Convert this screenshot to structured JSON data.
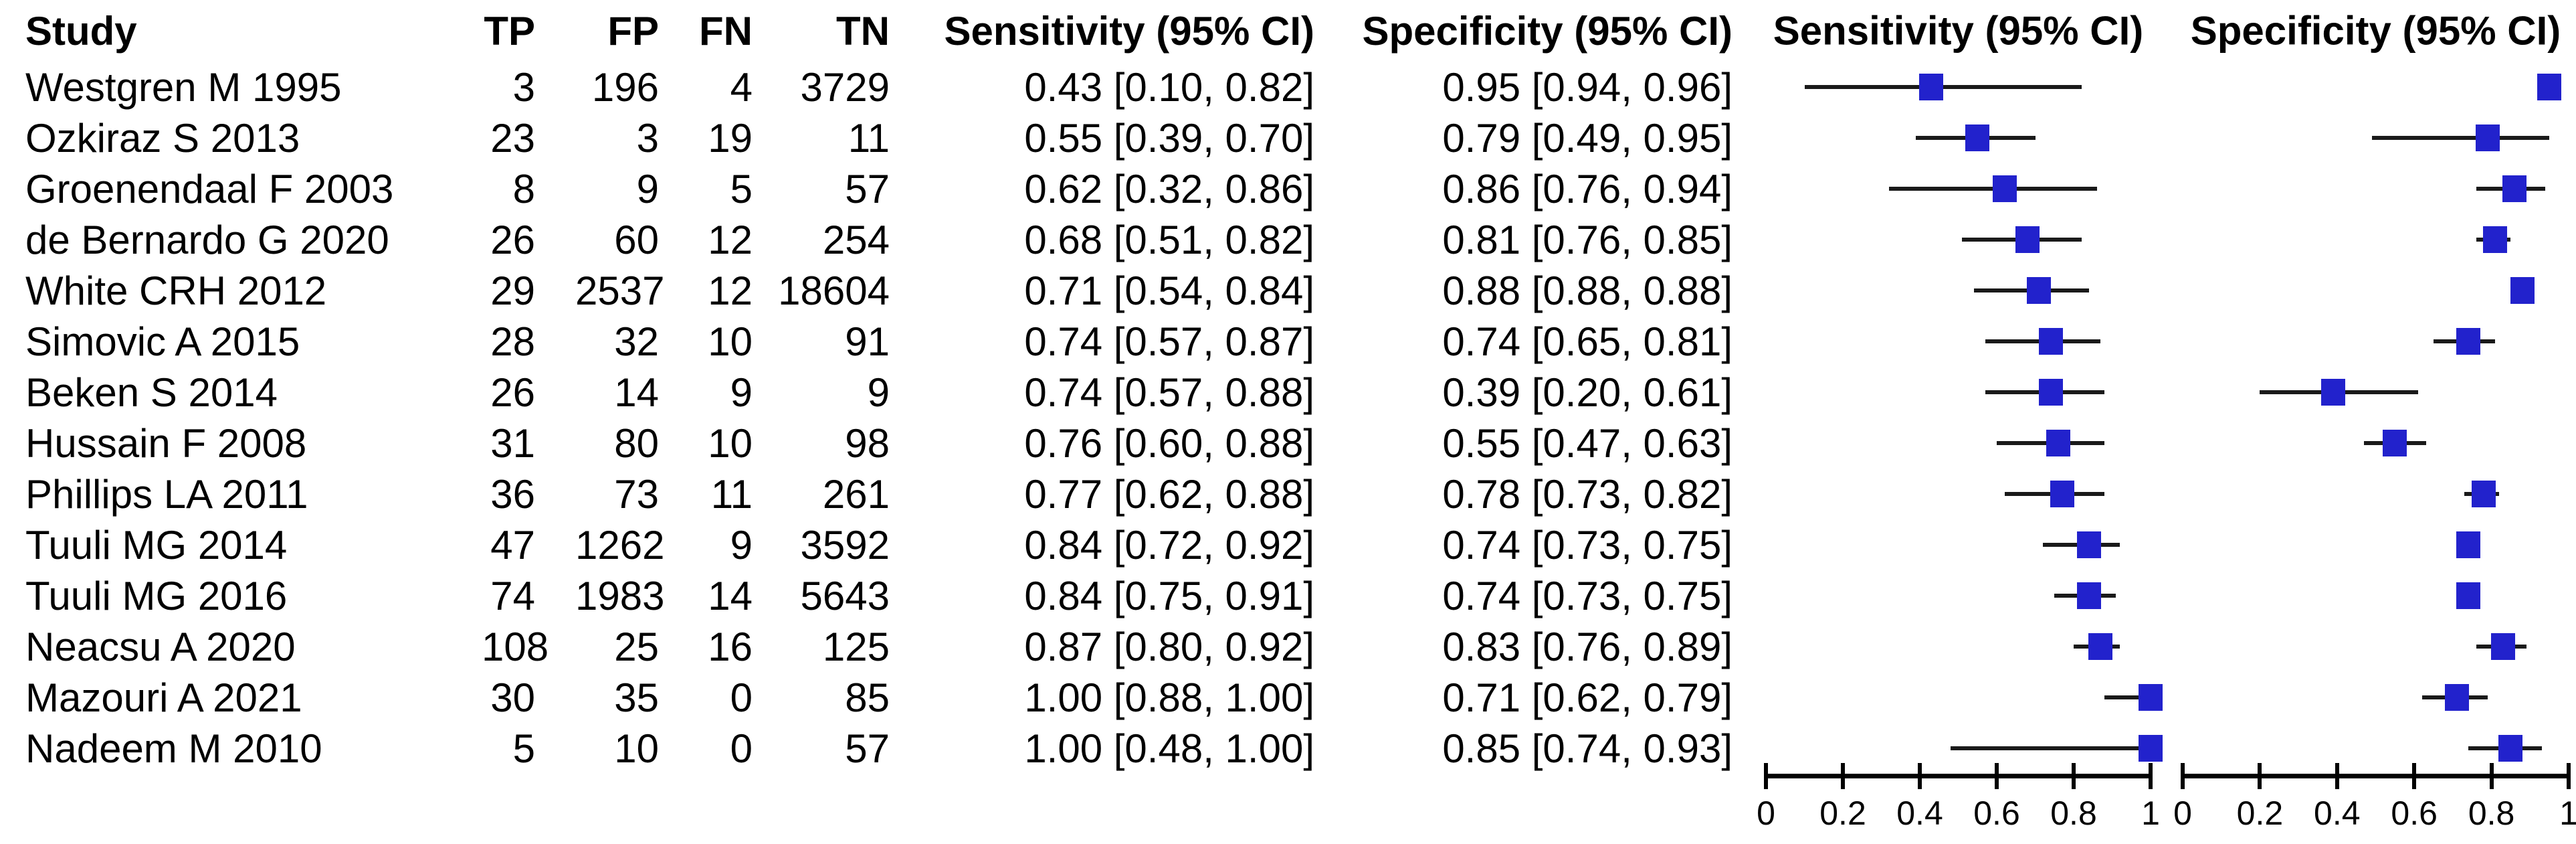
{
  "table": {
    "headers": {
      "study": "Study",
      "tp": "TP",
      "fp": "FP",
      "fn": "FN",
      "tn": "TN",
      "sensitivity": "Sensitivity (95% CI)",
      "specificity": "Specificity (95% CI)"
    }
  },
  "plot_headers": {
    "sensitivity": "Sensitivity (95% CI)",
    "specificity": "Specificity (95% CI)"
  },
  "colors": {
    "marker": "#2222CC",
    "ci_line": "#1a1a1a",
    "axis": "#000000",
    "text": "#000000",
    "background": "#ffffff"
  },
  "chart_data": {
    "type": "forest",
    "title": "",
    "xlabel": "",
    "grid": false,
    "panels": [
      {
        "name": "Sensitivity (95% CI)",
        "xlim": [
          0,
          1
        ],
        "xticks": [
          0,
          0.2,
          0.4,
          0.6,
          0.8,
          1
        ],
        "xtick_labels": [
          "0",
          "0.2",
          "0.4",
          "0.6",
          "0.8",
          "1"
        ]
      },
      {
        "name": "Specificity (95% CI)",
        "xlim": [
          0,
          1
        ],
        "xticks": [
          0,
          0.2,
          0.4,
          0.6,
          0.8,
          1
        ],
        "xtick_labels": [
          "0",
          "0.2",
          "0.4",
          "0.6",
          "0.8",
          "1"
        ]
      }
    ],
    "studies": [
      {
        "study": "Westgren M 1995",
        "tp": 3,
        "fp": 196,
        "fn": 4,
        "tn": 3729,
        "sensitivity_text": "0.43 [0.10, 0.82]",
        "specificity_text": "0.95 [0.94, 0.96]",
        "sens": 0.43,
        "sens_lo": 0.1,
        "sens_hi": 0.82,
        "spec": 0.95,
        "spec_lo": 0.94,
        "spec_hi": 0.96
      },
      {
        "study": "Ozkiraz S 2013",
        "tp": 23,
        "fp": 3,
        "fn": 19,
        "tn": 11,
        "sensitivity_text": "0.55 [0.39, 0.70]",
        "specificity_text": "0.79 [0.49, 0.95]",
        "sens": 0.55,
        "sens_lo": 0.39,
        "sens_hi": 0.7,
        "spec": 0.79,
        "spec_lo": 0.49,
        "spec_hi": 0.95
      },
      {
        "study": "Groenendaal F 2003",
        "tp": 8,
        "fp": 9,
        "fn": 5,
        "tn": 57,
        "sensitivity_text": "0.62 [0.32, 0.86]",
        "specificity_text": "0.86 [0.76, 0.94]",
        "sens": 0.62,
        "sens_lo": 0.32,
        "sens_hi": 0.86,
        "spec": 0.86,
        "spec_lo": 0.76,
        "spec_hi": 0.94
      },
      {
        "study": "de Bernardo G 2020",
        "tp": 26,
        "fp": 60,
        "fn": 12,
        "tn": 254,
        "sensitivity_text": "0.68 [0.51, 0.82]",
        "specificity_text": "0.81 [0.76, 0.85]",
        "sens": 0.68,
        "sens_lo": 0.51,
        "sens_hi": 0.82,
        "spec": 0.81,
        "spec_lo": 0.76,
        "spec_hi": 0.85
      },
      {
        "study": "White CRH 2012",
        "tp": 29,
        "fp": 2537,
        "fn": 12,
        "tn": 18604,
        "sensitivity_text": "0.71 [0.54, 0.84]",
        "specificity_text": "0.88 [0.88, 0.88]",
        "sens": 0.71,
        "sens_lo": 0.54,
        "sens_hi": 0.84,
        "spec": 0.88,
        "spec_lo": 0.88,
        "spec_hi": 0.88
      },
      {
        "study": "Simovic A 2015",
        "tp": 28,
        "fp": 32,
        "fn": 10,
        "tn": 91,
        "sensitivity_text": "0.74 [0.57, 0.87]",
        "specificity_text": "0.74 [0.65, 0.81]",
        "sens": 0.74,
        "sens_lo": 0.57,
        "sens_hi": 0.87,
        "spec": 0.74,
        "spec_lo": 0.65,
        "spec_hi": 0.81
      },
      {
        "study": "Beken S 2014",
        "tp": 26,
        "fp": 14,
        "fn": 9,
        "tn": 9,
        "sensitivity_text": "0.74 [0.57, 0.88]",
        "specificity_text": "0.39 [0.20, 0.61]",
        "sens": 0.74,
        "sens_lo": 0.57,
        "sens_hi": 0.88,
        "spec": 0.39,
        "spec_lo": 0.2,
        "spec_hi": 0.61
      },
      {
        "study": "Hussain F 2008",
        "tp": 31,
        "fp": 80,
        "fn": 10,
        "tn": 98,
        "sensitivity_text": "0.76 [0.60, 0.88]",
        "specificity_text": "0.55 [0.47, 0.63]",
        "sens": 0.76,
        "sens_lo": 0.6,
        "sens_hi": 0.88,
        "spec": 0.55,
        "spec_lo": 0.47,
        "spec_hi": 0.63
      },
      {
        "study": "Phillips LA 2011",
        "tp": 36,
        "fp": 73,
        "fn": 11,
        "tn": 261,
        "sensitivity_text": "0.77 [0.62, 0.88]",
        "specificity_text": "0.78 [0.73, 0.82]",
        "sens": 0.77,
        "sens_lo": 0.62,
        "sens_hi": 0.88,
        "spec": 0.78,
        "spec_lo": 0.73,
        "spec_hi": 0.82
      },
      {
        "study": "Tuuli MG 2014",
        "tp": 47,
        "fp": 1262,
        "fn": 9,
        "tn": 3592,
        "sensitivity_text": "0.84 [0.72, 0.92]",
        "specificity_text": "0.74 [0.73, 0.75]",
        "sens": 0.84,
        "sens_lo": 0.72,
        "sens_hi": 0.92,
        "spec": 0.74,
        "spec_lo": 0.73,
        "spec_hi": 0.75
      },
      {
        "study": "Tuuli MG 2016",
        "tp": 74,
        "fp": 1983,
        "fn": 14,
        "tn": 5643,
        "sensitivity_text": "0.84 [0.75, 0.91]",
        "specificity_text": "0.74 [0.73, 0.75]",
        "sens": 0.84,
        "sens_lo": 0.75,
        "sens_hi": 0.91,
        "spec": 0.74,
        "spec_lo": 0.73,
        "spec_hi": 0.75
      },
      {
        "study": "Neacsu A 2020",
        "tp": 108,
        "fp": 25,
        "fn": 16,
        "tn": 125,
        "sensitivity_text": "0.87 [0.80, 0.92]",
        "specificity_text": "0.83 [0.76, 0.89]",
        "sens": 0.87,
        "sens_lo": 0.8,
        "sens_hi": 0.92,
        "spec": 0.83,
        "spec_lo": 0.76,
        "spec_hi": 0.89
      },
      {
        "study": "Mazouri A 2021",
        "tp": 30,
        "fp": 35,
        "fn": 0,
        "tn": 85,
        "sensitivity_text": "1.00 [0.88, 1.00]",
        "specificity_text": "0.71 [0.62, 0.79]",
        "sens": 1.0,
        "sens_lo": 0.88,
        "sens_hi": 1.0,
        "spec": 0.71,
        "spec_lo": 0.62,
        "spec_hi": 0.79
      },
      {
        "study": "Nadeem M 2010",
        "tp": 5,
        "fp": 10,
        "fn": 0,
        "tn": 57,
        "sensitivity_text": "1.00 [0.48, 1.00]",
        "specificity_text": "0.85 [0.74, 0.93]",
        "sens": 1.0,
        "sens_lo": 0.48,
        "sens_hi": 1.0,
        "spec": 0.85,
        "spec_lo": 0.74,
        "spec_hi": 0.93
      }
    ]
  }
}
